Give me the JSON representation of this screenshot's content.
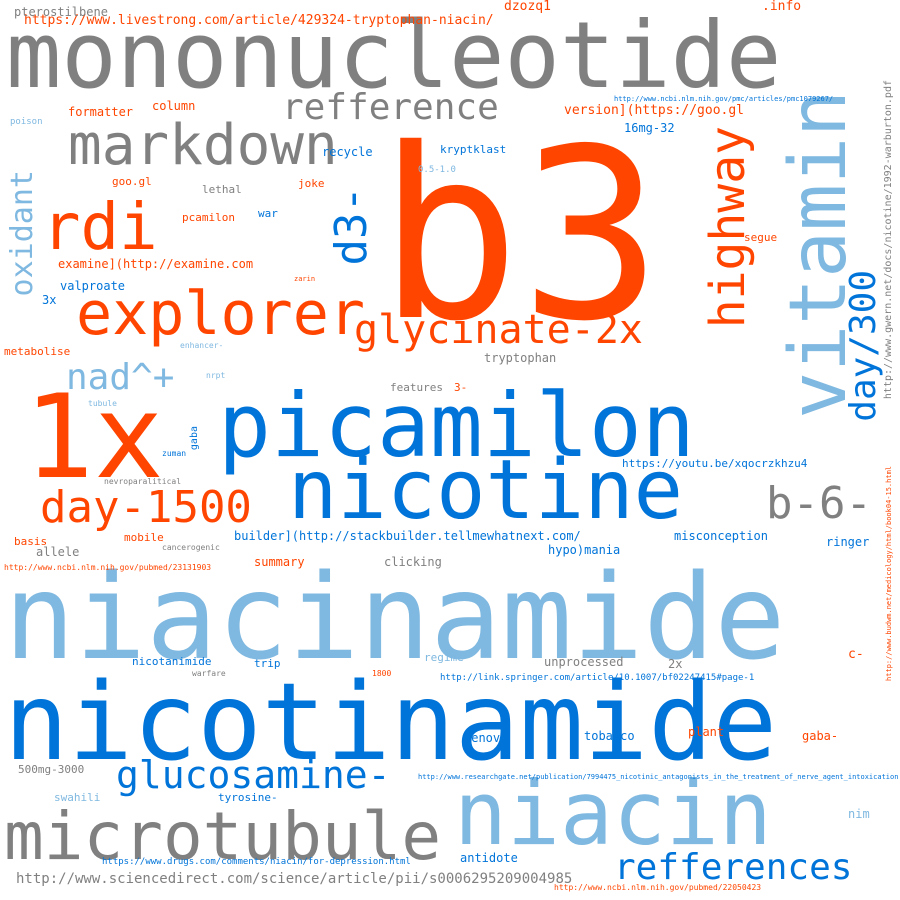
{
  "palette": {
    "orange": "#ff4500",
    "dark_blue": "#0074d9",
    "light_blue": "#7fb8e0",
    "gray": "#808080"
  },
  "words": [
    {
      "text": "mononucleotide",
      "color": "gray"
    },
    {
      "text": "b3",
      "color": "orange"
    },
    {
      "text": "niacinamide",
      "color": "light_blue"
    },
    {
      "text": "nicotinamide",
      "color": "dark_blue"
    },
    {
      "text": "picamilon",
      "color": "dark_blue"
    },
    {
      "text": "nicotine",
      "color": "dark_blue"
    },
    {
      "text": "1x",
      "color": "orange"
    },
    {
      "text": "niacin",
      "color": "light_blue"
    },
    {
      "text": "microtubule",
      "color": "gray"
    },
    {
      "text": "vitamin",
      "color": "light_blue"
    },
    {
      "text": "markdown",
      "color": "gray"
    },
    {
      "text": "explorer",
      "color": "orange"
    },
    {
      "text": "refference",
      "color": "gray"
    },
    {
      "text": "rdi",
      "color": "orange"
    },
    {
      "text": "glycinate-2x",
      "color": "orange"
    },
    {
      "text": "highway",
      "color": "orange"
    },
    {
      "text": "d3-",
      "color": "dark_blue"
    },
    {
      "text": "day-1500",
      "color": "orange"
    },
    {
      "text": "glucosamine-",
      "color": "dark_blue"
    },
    {
      "text": "refferences",
      "color": "dark_blue"
    },
    {
      "text": "b-6-",
      "color": "gray"
    },
    {
      "text": "day/300",
      "color": "dark_blue"
    },
    {
      "text": "nad^+",
      "color": "light_blue"
    },
    {
      "text": "oxidant",
      "color": "light_blue"
    },
    {
      "text": "https://www.livestrong.com/article/429324-tryptophan-niacin/",
      "color": "orange"
    },
    {
      "text": "pterostilbene",
      "color": "gray"
    },
    {
      "text": "dzozq1",
      "color": "orange"
    },
    {
      "text": ".info",
      "color": "orange"
    },
    {
      "text": "http://www.ncbi.nlm.nih.gov/pmc/articles/pmc1079267/",
      "color": "dark_blue"
    },
    {
      "text": "version](https://goo.gl",
      "color": "orange"
    },
    {
      "text": "16mg-32",
      "color": "dark_blue"
    },
    {
      "text": "poison",
      "color": "light_blue"
    },
    {
      "text": "formatter",
      "color": "orange"
    },
    {
      "text": "column",
      "color": "orange"
    },
    {
      "text": "kryptklast",
      "color": "dark_blue"
    },
    {
      "text": "recycle",
      "color": "dark_blue"
    },
    {
      "text": "0.5-1.0",
      "color": "light_blue"
    },
    {
      "text": "goo.gl",
      "color": "orange"
    },
    {
      "text": "joke",
      "color": "orange"
    },
    {
      "text": "lethal",
      "color": "gray"
    },
    {
      "text": "pcamilon",
      "color": "orange"
    },
    {
      "text": "war",
      "color": "dark_blue"
    },
    {
      "text": "segue",
      "color": "orange"
    },
    {
      "text": "examine](http://examine.com",
      "color": "orange"
    },
    {
      "text": "zarin",
      "color": "orange"
    },
    {
      "text": "valproate",
      "color": "dark_blue"
    },
    {
      "text": "3x",
      "color": "dark_blue"
    },
    {
      "text": "metabolise",
      "color": "orange"
    },
    {
      "text": "enhancer-",
      "color": "light_blue"
    },
    {
      "text": "tryptophan",
      "color": "gray"
    },
    {
      "text": "nrpt",
      "color": "light_blue"
    },
    {
      "text": "features",
      "color": "gray"
    },
    {
      "text": "3-",
      "color": "orange"
    },
    {
      "text": "tubule",
      "color": "light_blue"
    },
    {
      "text": "gaba",
      "color": "dark_blue"
    },
    {
      "text": "zuman",
      "color": "dark_blue"
    },
    {
      "text": "https://youtu.be/xqocrzkhzu4",
      "color": "dark_blue"
    },
    {
      "text": "nevroparalitical",
      "color": "gray"
    },
    {
      "text": "basis",
      "color": "orange"
    },
    {
      "text": "mobile",
      "color": "orange"
    },
    {
      "text": "builder](http://stackbuilder.tellmewhatnext.com/",
      "color": "dark_blue"
    },
    {
      "text": "misconception",
      "color": "dark_blue"
    },
    {
      "text": "ringer",
      "color": "dark_blue"
    },
    {
      "text": "allele",
      "color": "gray"
    },
    {
      "text": "cancerogenic",
      "color": "gray"
    },
    {
      "text": "hypo)mania",
      "color": "dark_blue"
    },
    {
      "text": "http://www.ncbi.nlm.nih.gov/pubmed/23131903",
      "color": "orange"
    },
    {
      "text": "summary",
      "color": "orange"
    },
    {
      "text": "clicking",
      "color": "gray"
    },
    {
      "text": "nicotanimide",
      "color": "dark_blue"
    },
    {
      "text": "trip",
      "color": "dark_blue"
    },
    {
      "text": "regime",
      "color": "light_blue"
    },
    {
      "text": "unprocessed",
      "color": "gray"
    },
    {
      "text": "2x",
      "color": "gray"
    },
    {
      "text": "c-",
      "color": "orange"
    },
    {
      "text": "warfare",
      "color": "gray"
    },
    {
      "text": "1800",
      "color": "orange"
    },
    {
      "text": "http://link.springer.com/article/10.1007/bf02247415#page-1",
      "color": "dark_blue"
    },
    {
      "text": "denovo",
      "color": "dark_blue"
    },
    {
      "text": "tobacco",
      "color": "dark_blue"
    },
    {
      "text": "plant",
      "color": "orange"
    },
    {
      "text": "gaba-",
      "color": "orange"
    },
    {
      "text": "500mg-3000",
      "color": "gray"
    },
    {
      "text": "http://www.researchgate.net/publication/7994475_nicotinic_antagonists_in_the_treatment_of_nerve_agent_intoxication",
      "color": "dark_blue"
    },
    {
      "text": "swahili",
      "color": "light_blue"
    },
    {
      "text": "tyrosine-",
      "color": "dark_blue"
    },
    {
      "text": "nim",
      "color": "light_blue"
    },
    {
      "text": "https://www.drugs.com/comments/niacin/for-depression.html",
      "color": "dark_blue"
    },
    {
      "text": "antidote",
      "color": "dark_blue"
    },
    {
      "text": "http://www.sciencedirect.com/science/article/pii/s0006295209004985",
      "color": "gray"
    },
    {
      "text": "http://www.ncbi.nlm.nih.gov/pubmed/22050423",
      "color": "orange"
    },
    {
      "text": "http://www.gwern.net/docs/nicotine/1992-warburton.pdf",
      "color": "gray"
    },
    {
      "text": "http://www.budwm.net/medicology/html/book04-15.html",
      "color": "orange"
    }
  ]
}
